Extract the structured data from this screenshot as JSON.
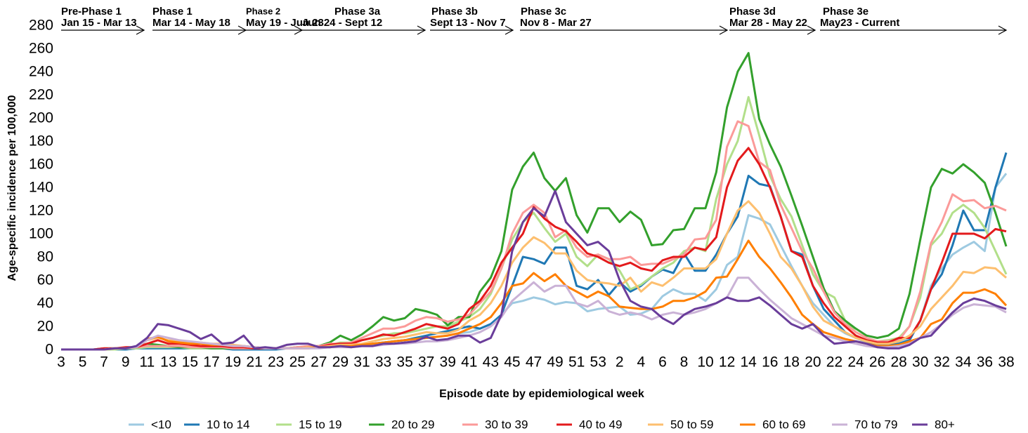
{
  "chart_data": {
    "type": "line",
    "x_label": "Episode date by epidemiological week",
    "y_label": "Age-specific incidence per 100,000",
    "ylim": [
      0,
      280
    ],
    "yticks": [
      0,
      20,
      40,
      60,
      80,
      100,
      120,
      140,
      160,
      180,
      200,
      220,
      240,
      260,
      280
    ],
    "grid": false,
    "legend": "bottom",
    "annotations": [
      {
        "title": "Pre-Phase 1",
        "dates": "Jan 15 - Mar 13"
      },
      {
        "title": "Phase 1",
        "dates": "Mar 14 - May 18"
      },
      {
        "title": "Phase 2",
        "dates": "May 19 - Jun 23"
      },
      {
        "title": "Phase 3a",
        "dates": "Jun 24 - Sept 12"
      },
      {
        "title": "Phase 3b",
        "dates": "Sept 13 - Nov 7"
      },
      {
        "title": "Phase 3c",
        "dates": "Nov 8 - Mar 27"
      },
      {
        "title": "Phase 3d",
        "dates": "Mar 28 - May 22"
      },
      {
        "title": "Phase 3e",
        "dates": "May23 - Current"
      }
    ],
    "categories": [
      "3",
      null,
      "5",
      null,
      "7",
      null,
      "9",
      null,
      "11",
      null,
      "13",
      null,
      "15",
      null,
      "17",
      null,
      "19",
      null,
      "21",
      null,
      "23",
      null,
      "25",
      null,
      "27",
      null,
      "29",
      null,
      "31",
      null,
      "33",
      null,
      "35",
      null,
      "37",
      null,
      "39",
      null,
      "41",
      null,
      "43",
      null,
      "45",
      null,
      "47",
      null,
      "49",
      null,
      "51",
      null,
      "53",
      null,
      "2",
      null,
      "4",
      null,
      "6",
      null,
      "8",
      null,
      "10",
      null,
      "12",
      null,
      "14",
      null,
      "16",
      null,
      "18",
      null,
      "20",
      null,
      "22",
      null,
      "24",
      null,
      "26",
      null,
      "28",
      null,
      "30",
      null,
      "32",
      null,
      "34",
      null,
      "36",
      null,
      "38"
    ],
    "series": [
      {
        "name": "<10",
        "color": "#9ecae1",
        "values": [
          0,
          0,
          0,
          0,
          0,
          0,
          0,
          1,
          1,
          1,
          1,
          1,
          1,
          1,
          1,
          1,
          1,
          1,
          0,
          0,
          1,
          1,
          1,
          1,
          2,
          2,
          3,
          3,
          4,
          5,
          6,
          7,
          8,
          9,
          10,
          11,
          12,
          14,
          15,
          18,
          22,
          30,
          40,
          42,
          45,
          43,
          39,
          41,
          40,
          33,
          35,
          36,
          37,
          30,
          31,
          35,
          46,
          52,
          48,
          48,
          42,
          52,
          73,
          80,
          116,
          113,
          108,
          90,
          72,
          55,
          40,
          30,
          20,
          14,
          10,
          6,
          4,
          4,
          6,
          10,
          25,
          55,
          70,
          82,
          88,
          93,
          85,
          140,
          152
        ]
      },
      {
        "name": "10 to 14",
        "color": "#1f78b4",
        "values": [
          0,
          0,
          0,
          0,
          0,
          0,
          0,
          1,
          1,
          1,
          1,
          1,
          1,
          1,
          1,
          1,
          0,
          0,
          0,
          0,
          0,
          1,
          1,
          1,
          2,
          2,
          3,
          4,
          4,
          5,
          6,
          7,
          8,
          10,
          12,
          14,
          16,
          18,
          20,
          18,
          22,
          30,
          55,
          80,
          78,
          74,
          88,
          88,
          55,
          52,
          60,
          47,
          58,
          50,
          55,
          63,
          69,
          66,
          83,
          68,
          68,
          82,
          100,
          115,
          150,
          143,
          141,
          115,
          85,
          82,
          55,
          35,
          25,
          15,
          10,
          7,
          4,
          4,
          5,
          8,
          25,
          52,
          65,
          90,
          120,
          103,
          103,
          140,
          170
        ]
      },
      {
        "name": "15 to 19",
        "color": "#b2df8a",
        "values": [
          0,
          0,
          0,
          0,
          0,
          0,
          1,
          1,
          2,
          2,
          2,
          2,
          1,
          1,
          1,
          1,
          1,
          1,
          1,
          1,
          1,
          1,
          1,
          2,
          3,
          4,
          6,
          6,
          8,
          10,
          12,
          14,
          14,
          16,
          18,
          20,
          20,
          24,
          28,
          35,
          48,
          70,
          95,
          110,
          118,
          105,
          93,
          100,
          80,
          72,
          82,
          78,
          68,
          52,
          56,
          63,
          70,
          75,
          85,
          88,
          85,
          130,
          160,
          180,
          218,
          185,
          150,
          130,
          115,
          90,
          65,
          50,
          45,
          25,
          15,
          10,
          7,
          8,
          10,
          20,
          45,
          90,
          100,
          118,
          125,
          118,
          105,
          85,
          65
        ]
      },
      {
        "name": "20 to 29",
        "color": "#33a02c",
        "values": [
          0,
          0,
          0,
          0,
          1,
          1,
          1,
          2,
          5,
          4,
          3,
          2,
          2,
          2,
          1,
          1,
          1,
          1,
          1,
          1,
          1,
          1,
          2,
          2,
          3,
          6,
          12,
          8,
          13,
          20,
          28,
          25,
          27,
          35,
          33,
          30,
          21,
          28,
          28,
          50,
          62,
          85,
          138,
          158,
          170,
          148,
          137,
          148,
          116,
          101,
          122,
          122,
          110,
          119,
          112,
          90,
          91,
          103,
          104,
          122,
          122,
          153,
          209,
          240,
          256,
          199,
          177,
          158,
          133,
          107,
          80,
          53,
          33,
          25,
          18,
          12,
          10,
          12,
          18,
          48,
          95,
          140,
          156,
          152,
          160,
          153,
          144,
          118,
          89
        ]
      },
      {
        "name": "30 to 39",
        "color": "#fb9a99",
        "values": [
          0,
          0,
          0,
          0,
          1,
          1,
          1,
          2,
          3,
          3,
          3,
          3,
          2,
          2,
          2,
          2,
          1,
          1,
          1,
          1,
          1,
          1,
          2,
          3,
          3,
          5,
          5,
          6,
          10,
          14,
          18,
          18,
          20,
          25,
          28,
          27,
          24,
          26,
          30,
          40,
          50,
          70,
          100,
          118,
          125,
          118,
          97,
          103,
          88,
          80,
          82,
          78,
          78,
          80,
          73,
          74,
          74,
          78,
          82,
          95,
          96,
          112,
          175,
          197,
          193,
          162,
          155,
          125,
          105,
          85,
          70,
          50,
          32,
          22,
          15,
          10,
          7,
          7,
          8,
          20,
          50,
          92,
          110,
          134,
          128,
          129,
          122,
          124,
          120
        ]
      },
      {
        "name": "40 to 49",
        "color": "#e31a1c",
        "values": [
          0,
          0,
          0,
          0,
          1,
          1,
          2,
          2,
          5,
          8,
          5,
          5,
          4,
          3,
          3,
          3,
          2,
          2,
          1,
          1,
          1,
          1,
          1,
          2,
          2,
          4,
          5,
          5,
          8,
          10,
          13,
          12,
          15,
          18,
          22,
          20,
          18,
          22,
          35,
          42,
          55,
          75,
          88,
          100,
          123,
          113,
          106,
          102,
          93,
          83,
          80,
          75,
          72,
          75,
          70,
          68,
          77,
          80,
          80,
          88,
          86,
          97,
          140,
          163,
          174,
          160,
          140,
          115,
          85,
          80,
          55,
          40,
          28,
          20,
          12,
          8,
          6,
          6,
          10,
          10,
          25,
          52,
          75,
          100,
          100,
          100,
          96,
          104,
          102
        ]
      },
      {
        "name": "50 to 59",
        "color": "#fdbf6f",
        "values": [
          0,
          0,
          0,
          0,
          0,
          1,
          1,
          2,
          8,
          10,
          8,
          7,
          6,
          6,
          5,
          5,
          4,
          3,
          2,
          1,
          1,
          1,
          1,
          2,
          2,
          3,
          4,
          4,
          5,
          7,
          9,
          10,
          11,
          13,
          15,
          14,
          14,
          17,
          25,
          30,
          40,
          55,
          75,
          88,
          97,
          92,
          83,
          83,
          68,
          60,
          58,
          57,
          55,
          62,
          50,
          58,
          55,
          62,
          70,
          70,
          70,
          78,
          100,
          120,
          128,
          118,
          100,
          80,
          70,
          55,
          37,
          25,
          20,
          15,
          10,
          7,
          5,
          5,
          7,
          12,
          20,
          35,
          45,
          55,
          67,
          66,
          71,
          70,
          62
        ]
      },
      {
        "name": "60 to 69",
        "color": "#ff7f00",
        "values": [
          0,
          0,
          0,
          0,
          0,
          1,
          1,
          2,
          9,
          11,
          7,
          6,
          5,
          5,
          4,
          4,
          3,
          3,
          2,
          1,
          1,
          1,
          1,
          1,
          2,
          2,
          3,
          3,
          4,
          5,
          6,
          7,
          8,
          9,
          10,
          11,
          12,
          14,
          18,
          22,
          28,
          40,
          55,
          57,
          66,
          59,
          65,
          55,
          50,
          45,
          50,
          46,
          37,
          36,
          35,
          35,
          37,
          42,
          42,
          45,
          50,
          62,
          63,
          78,
          94,
          80,
          70,
          58,
          45,
          30,
          22,
          15,
          12,
          9,
          7,
          5,
          3,
          3,
          4,
          7,
          10,
          22,
          26,
          40,
          49,
          49,
          52,
          48,
          38
        ]
      },
      {
        "name": "70 to 79",
        "color": "#cab2d6",
        "values": [
          0,
          0,
          0,
          0,
          0,
          1,
          1,
          2,
          8,
          12,
          10,
          8,
          7,
          6,
          5,
          4,
          3,
          3,
          2,
          1,
          1,
          1,
          1,
          1,
          1,
          2,
          2,
          2,
          3,
          3,
          4,
          5,
          5,
          6,
          7,
          7,
          8,
          10,
          12,
          15,
          20,
          28,
          42,
          50,
          58,
          50,
          55,
          55,
          40,
          37,
          42,
          33,
          30,
          32,
          30,
          26,
          30,
          32,
          30,
          32,
          35,
          40,
          45,
          62,
          62,
          52,
          43,
          35,
          27,
          22,
          17,
          12,
          10,
          7,
          5,
          3,
          2,
          2,
          3,
          5,
          10,
          15,
          22,
          30,
          36,
          39,
          38,
          37,
          32
        ]
      },
      {
        "name": "80+",
        "color": "#6a3d9a",
        "values": [
          0,
          0,
          0,
          0,
          0,
          1,
          1,
          3,
          10,
          22,
          21,
          18,
          15,
          9,
          13,
          5,
          6,
          12,
          1,
          2,
          1,
          4,
          5,
          5,
          2,
          2,
          3,
          2,
          3,
          3,
          5,
          5,
          6,
          7,
          11,
          8,
          9,
          12,
          12,
          6,
          10,
          30,
          85,
          110,
          122,
          115,
          137,
          110,
          100,
          90,
          93,
          85,
          60,
          42,
          37,
          35,
          27,
          22,
          30,
          35,
          37,
          40,
          45,
          42,
          42,
          45,
          38,
          30,
          22,
          18,
          22,
          12,
          5,
          6,
          7,
          5,
          2,
          1,
          1,
          4,
          10,
          12,
          22,
          32,
          40,
          44,
          42,
          38,
          35
        ]
      }
    ]
  }
}
